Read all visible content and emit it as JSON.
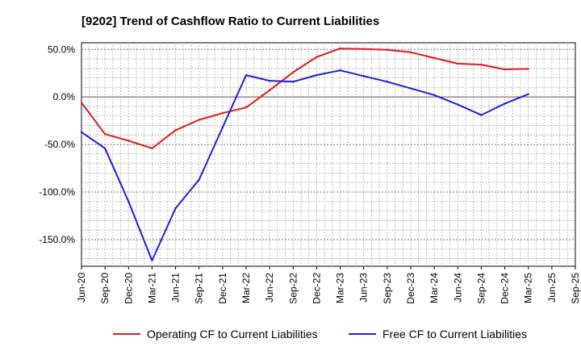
{
  "chart_data": {
    "type": "line",
    "title": "[9202]  Trend of Cashflow Ratio to Current Liabilities",
    "xlabel": "",
    "ylabel": "",
    "ylim": [
      -178,
      57
    ],
    "y_ticks": [
      50,
      0,
      -50,
      -100,
      -150
    ],
    "y_tick_labels": [
      "50.0%",
      "0.0%",
      "-50.0%",
      "-100.0%",
      "-150.0%"
    ],
    "x_ticks": [
      "Jun-20",
      "Sep-20",
      "Dec-20",
      "Mar-21",
      "Jun-21",
      "Sep-21",
      "Dec-21",
      "Mar-22",
      "Jun-22",
      "Sep-22",
      "Dec-22",
      "Mar-23",
      "Jun-23",
      "Sep-23",
      "Dec-23",
      "Mar-24",
      "Jun-24",
      "Sep-24",
      "Dec-24",
      "Mar-25",
      "Jun-25",
      "Sep-25"
    ],
    "grid": true,
    "legend_position": "bottom",
    "series": [
      {
        "name": "Operating CF to Current Liabilities",
        "color": "#e31a1c",
        "values": [
          -6,
          -39,
          -46,
          -54,
          -35,
          -24,
          -17,
          -11,
          7,
          26,
          42,
          51,
          50.5,
          49.5,
          47,
          41,
          35,
          34,
          29,
          29.5
        ]
      },
      {
        "name": "Free CF to Current Liabilities",
        "color": "#1f1fd6",
        "values": [
          -37,
          -54,
          -110,
          -172,
          -117,
          -87,
          -32,
          23,
          17,
          16,
          23,
          28,
          22,
          16,
          9,
          2,
          -8,
          -19,
          -7,
          3
        ]
      }
    ]
  }
}
